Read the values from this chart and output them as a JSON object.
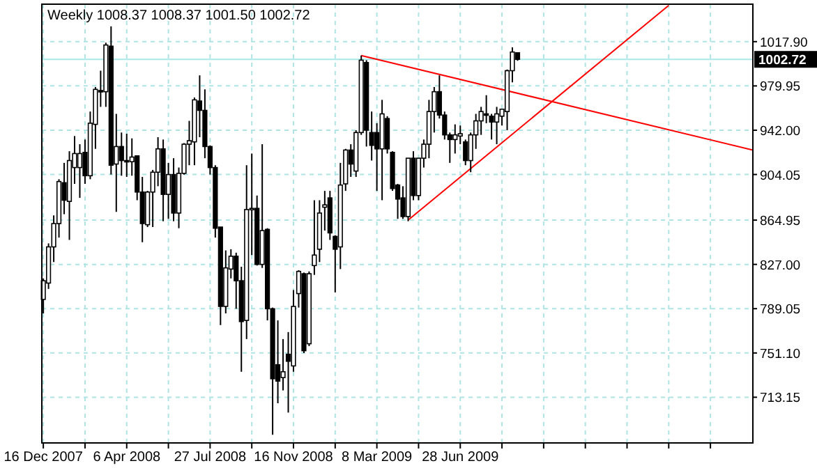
{
  "chart_data": {
    "type": "candlestick",
    "title": "Weekly  1008.37 1008.37 1001.50 1002.72",
    "x": [
      "2007-12-16",
      "2007-12-23",
      "2007-12-30",
      "2008-01-06",
      "2008-01-13",
      "2008-01-20",
      "2008-01-27",
      "2008-02-03",
      "2008-02-10",
      "2008-02-17",
      "2008-02-24",
      "2008-03-02",
      "2008-03-09",
      "2008-03-16",
      "2008-03-23",
      "2008-03-30",
      "2008-04-06",
      "2008-04-13",
      "2008-04-20",
      "2008-04-27",
      "2008-05-04",
      "2008-05-11",
      "2008-05-18",
      "2008-05-25",
      "2008-06-01",
      "2008-06-08",
      "2008-06-15",
      "2008-06-22",
      "2008-06-29",
      "2008-07-06",
      "2008-07-13",
      "2008-07-20",
      "2008-07-27",
      "2008-08-03",
      "2008-08-10",
      "2008-08-17",
      "2008-08-24",
      "2008-08-31",
      "2008-09-07",
      "2008-09-14",
      "2008-09-21",
      "2008-09-28",
      "2008-10-05",
      "2008-10-12",
      "2008-10-19",
      "2008-10-26",
      "2008-11-02",
      "2008-11-09",
      "2008-11-16",
      "2008-11-23",
      "2008-11-30",
      "2008-12-07",
      "2008-12-14",
      "2008-12-21",
      "2008-12-28",
      "2009-01-04",
      "2009-01-11",
      "2009-01-18",
      "2009-01-25",
      "2009-02-01",
      "2009-02-08",
      "2009-02-15",
      "2009-02-22",
      "2009-03-01",
      "2009-03-08",
      "2009-03-15",
      "2009-03-22",
      "2009-03-29",
      "2009-04-05",
      "2009-04-12",
      "2009-04-19",
      "2009-04-26",
      "2009-05-03",
      "2009-05-10",
      "2009-05-17",
      "2009-05-24",
      "2009-05-31",
      "2009-06-07",
      "2009-06-14",
      "2009-06-21",
      "2009-06-28",
      "2009-07-05",
      "2009-07-12",
      "2009-07-19",
      "2009-07-26",
      "2009-08-02",
      "2009-08-09",
      "2009-08-16",
      "2009-08-23",
      "2009-08-30",
      "2009-09-06",
      "2009-09-13"
    ],
    "ohlc": [
      [
        797,
        815,
        785,
        813
      ],
      [
        811,
        845,
        806,
        842
      ],
      [
        842,
        869,
        829,
        862
      ],
      [
        862,
        900,
        850,
        898
      ],
      [
        897,
        914,
        870,
        882
      ],
      [
        881,
        924,
        848,
        916
      ],
      [
        910,
        937,
        896,
        922
      ],
      [
        910,
        930,
        884,
        922
      ],
      [
        923,
        934,
        896,
        903
      ],
      [
        903,
        958,
        900,
        948
      ],
      [
        947,
        979,
        926,
        977
      ],
      [
        976,
        993,
        962,
        975
      ],
      [
        975,
        1017,
        962,
        1015
      ],
      [
        1014,
        1031,
        904,
        912
      ],
      [
        913,
        956,
        872,
        928
      ],
      [
        928,
        940,
        903,
        916
      ],
      [
        916,
        939,
        902,
        915
      ],
      [
        915,
        935,
        903,
        919
      ],
      [
        920,
        920,
        882,
        889
      ],
      [
        889,
        902,
        846,
        862
      ],
      [
        861,
        890,
        859,
        889
      ],
      [
        889,
        908,
        859,
        906
      ],
      [
        906,
        936,
        894,
        926
      ],
      [
        926,
        934,
        864,
        887
      ],
      [
        887,
        914,
        866,
        904
      ],
      [
        904,
        918,
        864,
        871
      ],
      [
        871,
        910,
        858,
        905
      ],
      [
        905,
        931,
        904,
        930
      ],
      [
        930,
        950,
        912,
        933
      ],
      [
        932,
        970,
        912,
        968
      ],
      [
        967,
        989,
        936,
        959
      ],
      [
        959,
        977,
        918,
        928
      ],
      [
        928,
        929,
        904,
        910
      ],
      [
        910,
        912,
        850,
        858
      ],
      [
        859,
        859,
        775,
        791
      ],
      [
        791,
        839,
        785,
        824
      ],
      [
        823,
        840,
        815,
        834
      ],
      [
        834,
        837,
        789,
        813
      ],
      [
        813,
        825,
        735,
        778
      ],
      [
        779,
        912,
        763,
        874
      ],
      [
        874,
        922,
        835,
        875
      ],
      [
        875,
        886,
        826,
        827
      ],
      [
        827,
        930,
        824,
        856
      ],
      [
        857,
        858,
        779,
        789
      ],
      [
        789,
        790,
        681,
        729
      ],
      [
        741,
        779,
        708,
        727
      ],
      [
        730,
        763,
        719,
        735
      ],
      [
        750,
        769,
        700,
        744
      ],
      [
        740,
        805,
        735,
        791
      ],
      [
        802,
        822,
        790,
        821
      ],
      [
        819,
        820,
        751,
        753
      ],
      [
        759,
        821,
        757,
        819
      ],
      [
        826,
        882,
        818,
        835
      ],
      [
        840,
        882,
        829,
        871
      ],
      [
        876,
        890,
        856,
        878
      ],
      [
        884,
        890,
        848,
        854
      ],
      [
        851,
        852,
        803,
        840
      ],
      [
        842,
        914,
        823,
        895
      ],
      [
        896,
        926,
        890,
        925
      ],
      [
        925,
        930,
        902,
        913
      ],
      [
        907,
        942,
        902,
        940
      ],
      [
        940,
        1006,
        938,
        1002
      ],
      [
        1000,
        1002,
        928,
        942
      ],
      [
        940,
        958,
        916,
        929
      ],
      [
        940,
        948,
        890,
        926
      ],
      [
        926,
        968,
        882,
        956
      ],
      [
        952,
        954,
        922,
        926
      ],
      [
        923,
        924,
        890,
        892
      ],
      [
        895,
        896,
        866,
        883
      ],
      [
        884,
        894,
        866,
        868
      ],
      [
        868,
        918,
        864,
        918
      ],
      [
        918,
        924,
        882,
        886
      ],
      [
        886,
        918,
        882,
        918
      ],
      [
        918,
        934,
        910,
        930
      ],
      [
        930,
        968,
        918,
        958
      ],
      [
        958,
        979,
        940,
        975
      ],
      [
        975,
        989,
        952,
        955
      ],
      [
        955,
        958,
        934,
        938
      ],
      [
        938,
        940,
        914,
        934
      ],
      [
        934,
        947,
        922,
        938
      ],
      [
        937,
        946,
        930,
        939
      ],
      [
        932,
        934,
        912,
        916
      ],
      [
        916,
        940,
        906,
        938
      ],
      [
        938,
        956,
        926,
        950
      ],
      [
        950,
        962,
        938,
        958
      ],
      [
        956,
        972,
        948,
        955
      ],
      [
        954,
        956,
        934,
        949
      ],
      [
        949,
        962,
        930,
        956
      ],
      [
        954,
        960,
        946,
        960
      ],
      [
        958,
        994,
        942,
        993
      ],
      [
        993,
        1013,
        983,
        1009
      ],
      [
        1008.37,
        1008.37,
        1001.5,
        1002.72
      ]
    ],
    "series": [
      {
        "type": "line",
        "color": "#ff0000",
        "x": [
          "2009-02-15",
          "2010-07-26"
        ],
        "values": [
          1006,
          925
        ]
      },
      {
        "type": "line",
        "color": "#ff0000",
        "x": [
          "2009-04-19",
          "2010-04-04"
        ],
        "values": [
          865,
          1049
        ]
      }
    ],
    "xlim": [
      "2007-12-14",
      "2010-07-26"
    ],
    "xticks": [
      {
        "value": "2007-12-16",
        "label": "16 Dec 2007"
      },
      {
        "value": "2008-02-10",
        "label": null
      },
      {
        "value": "2008-04-06",
        "label": "6 Apr 2008"
      },
      {
        "value": "2008-06-01",
        "label": null
      },
      {
        "value": "2008-07-27",
        "label": "27 Jul 2008"
      },
      {
        "value": "2008-09-21",
        "label": null
      },
      {
        "value": "2008-11-16",
        "label": "16 Nov 2008"
      },
      {
        "value": "2009-01-11",
        "label": null
      },
      {
        "value": "2009-03-08",
        "label": "8 Mar 2009"
      },
      {
        "value": "2009-05-03",
        "label": null
      },
      {
        "value": "2009-06-28",
        "label": "28 Jun 2009"
      },
      {
        "value": "2009-08-23",
        "label": null
      },
      {
        "value": "2009-10-18",
        "label": null
      },
      {
        "value": "2009-12-13",
        "label": null
      },
      {
        "value": "2010-02-07",
        "label": null
      },
      {
        "value": "2010-04-04",
        "label": null
      },
      {
        "value": "2010-05-30",
        "label": null
      }
    ],
    "ylim": [
      674,
      1050
    ],
    "yticks": [
      {
        "value": 713.15,
        "label": "713.15"
      },
      {
        "value": 751.1,
        "label": "751.10"
      },
      {
        "value": 789.05,
        "label": "789.05"
      },
      {
        "value": 827,
        "label": "827.00"
      },
      {
        "value": 864.95,
        "label": "864.95"
      },
      {
        "value": 904.05,
        "label": "904.05"
      },
      {
        "value": 942,
        "label": "942.00"
      },
      {
        "value": 979.95,
        "label": "979.95"
      },
      {
        "value": 1017.9,
        "label": "1017.90"
      }
    ],
    "ref_lines": [
      {
        "axis": "y",
        "value": 1002.72,
        "label": "1002.72",
        "color": "#a8e8e8"
      }
    ],
    "grid": true
  }
}
